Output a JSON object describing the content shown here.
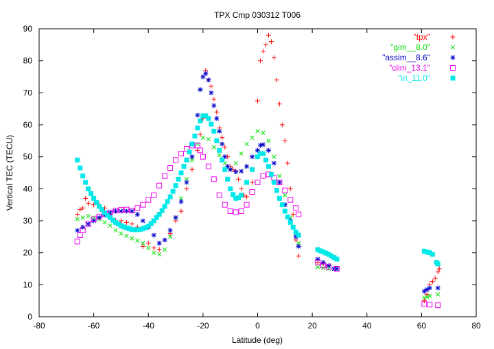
{
  "chart_data": {
    "type": "scatter",
    "title": "TPX Cmp 030312 T006",
    "xlabel": "Latitude (deg)",
    "ylabel": "Vertical TEC (TECU)",
    "xlim": [
      -80,
      80
    ],
    "ylim": [
      0,
      90
    ],
    "xticks": [
      -80,
      -60,
      -40,
      -20,
      0,
      20,
      40,
      60,
      80
    ],
    "yticks": [
      0,
      10,
      20,
      30,
      40,
      50,
      60,
      70,
      80,
      90
    ],
    "grid": false,
    "legend_position": "top-right",
    "series": [
      {
        "name": "\"tpx\"",
        "color": "#ff0000",
        "marker": "plus",
        "points": [
          [
            -66,
            32
          ],
          [
            -65,
            33.5
          ],
          [
            -64,
            34
          ],
          [
            -63,
            37
          ],
          [
            -62,
            35.5
          ],
          [
            -60,
            35
          ],
          [
            -58,
            35
          ],
          [
            -56,
            34
          ],
          [
            -54,
            32
          ],
          [
            -52,
            30
          ],
          [
            -50,
            30
          ],
          [
            -48,
            29.5
          ],
          [
            -46,
            29
          ],
          [
            -44,
            28
          ],
          [
            -42,
            22
          ],
          [
            -40,
            23
          ],
          [
            -38,
            21.5
          ],
          [
            -36,
            21
          ],
          [
            -34,
            24
          ],
          [
            -32,
            26
          ],
          [
            -30,
            30
          ],
          [
            -28,
            33
          ],
          [
            -26,
            40
          ],
          [
            -24,
            46
          ],
          [
            -22,
            52
          ],
          [
            -21,
            57
          ],
          [
            -20,
            62
          ],
          [
            -19,
            77
          ],
          [
            -18,
            74
          ],
          [
            -17,
            72
          ],
          [
            -16,
            68
          ],
          [
            -15,
            64
          ],
          [
            -14,
            59
          ],
          [
            -13,
            56
          ],
          [
            -12,
            53
          ],
          [
            -11,
            50
          ],
          [
            -10,
            47
          ],
          [
            -9,
            46
          ],
          [
            -8,
            45.5
          ],
          [
            -7,
            43
          ],
          [
            -6,
            40
          ],
          [
            -5,
            38
          ],
          [
            -4,
            37.5
          ],
          [
            -2,
            42
          ],
          [
            0,
            67.5
          ],
          [
            1,
            80
          ],
          [
            2,
            83
          ],
          [
            3,
            85
          ],
          [
            4,
            88
          ],
          [
            5,
            86
          ],
          [
            6,
            81
          ],
          [
            7,
            74
          ],
          [
            8,
            66.5
          ],
          [
            9,
            60
          ],
          [
            10,
            55
          ],
          [
            11,
            48
          ],
          [
            12,
            40
          ],
          [
            13,
            32
          ],
          [
            14,
            24
          ],
          [
            15,
            19
          ],
          [
            22,
            17
          ],
          [
            24,
            16.5
          ],
          [
            26,
            16
          ],
          [
            28,
            15
          ],
          [
            61,
            5
          ],
          [
            62,
            7
          ],
          [
            63,
            10
          ],
          [
            64,
            11
          ],
          [
            65,
            12
          ],
          [
            66,
            14
          ],
          [
            66.5,
            15
          ]
        ]
      },
      {
        "name": "\"gim__8.0\"",
        "color": "#00e000",
        "marker": "cross",
        "points": [
          [
            -66,
            30.5
          ],
          [
            -64,
            31
          ],
          [
            -62,
            31.5
          ],
          [
            -60,
            31
          ],
          [
            -58,
            30.5
          ],
          [
            -56,
            29.5
          ],
          [
            -54,
            28.5
          ],
          [
            -52,
            27
          ],
          [
            -50,
            26
          ],
          [
            -48,
            25.3
          ],
          [
            -46,
            24.5
          ],
          [
            -44,
            23.8
          ],
          [
            -42,
            23
          ],
          [
            -40,
            21.5
          ],
          [
            -38,
            20
          ],
          [
            -36,
            19.5
          ],
          [
            -34,
            21
          ],
          [
            -32,
            25
          ],
          [
            -30,
            31
          ],
          [
            -28,
            37
          ],
          [
            -26,
            43
          ],
          [
            -24,
            49
          ],
          [
            -22,
            54
          ],
          [
            -20,
            56
          ],
          [
            -18,
            55.5
          ],
          [
            -16,
            53
          ],
          [
            -14,
            50.5
          ],
          [
            -12,
            48
          ],
          [
            -10,
            46
          ],
          [
            -8,
            48
          ],
          [
            -6,
            51
          ],
          [
            -4,
            54
          ],
          [
            -2,
            56
          ],
          [
            0,
            58
          ],
          [
            2,
            57.5
          ],
          [
            4,
            55
          ],
          [
            6,
            50
          ],
          [
            8,
            44
          ],
          [
            10,
            38
          ],
          [
            12,
            31
          ],
          [
            14,
            26
          ],
          [
            15,
            23
          ],
          [
            22,
            15.5
          ],
          [
            24,
            15.2
          ],
          [
            26,
            15
          ],
          [
            28,
            15
          ],
          [
            29,
            15
          ],
          [
            61,
            6
          ],
          [
            62,
            6.2
          ],
          [
            63,
            6.5
          ],
          [
            66,
            7
          ]
        ]
      },
      {
        "name": "\"assim__8.6\"",
        "color": "#0000cc",
        "marker": "star",
        "points": [
          [
            -66,
            27
          ],
          [
            -64,
            28
          ],
          [
            -62,
            29
          ],
          [
            -60,
            30
          ],
          [
            -58,
            31
          ],
          [
            -56,
            32
          ],
          [
            -54,
            32.5
          ],
          [
            -52,
            33
          ],
          [
            -50,
            33
          ],
          [
            -48,
            33
          ],
          [
            -46,
            33
          ],
          [
            -44,
            32
          ],
          [
            -42,
            30
          ],
          [
            -40,
            28
          ],
          [
            -38,
            25.5
          ],
          [
            -36,
            23
          ],
          [
            -34,
            24
          ],
          [
            -32,
            27
          ],
          [
            -30,
            31
          ],
          [
            -28,
            36
          ],
          [
            -26,
            42
          ],
          [
            -24,
            50
          ],
          [
            -22,
            63
          ],
          [
            -21,
            71
          ],
          [
            -20,
            75
          ],
          [
            -19,
            76
          ],
          [
            -18,
            74
          ],
          [
            -17,
            70
          ],
          [
            -16,
            66
          ],
          [
            -15,
            62
          ],
          [
            -14,
            58
          ],
          [
            -13,
            54
          ],
          [
            -12,
            50
          ],
          [
            -11,
            47
          ],
          [
            -10,
            46
          ],
          [
            -8,
            45.3
          ],
          [
            -6,
            45.5
          ],
          [
            -4,
            47
          ],
          [
            -2,
            50
          ],
          [
            0,
            52
          ],
          [
            1,
            53.6
          ],
          [
            2,
            53.8
          ],
          [
            4,
            52
          ],
          [
            6,
            48
          ],
          [
            8,
            42
          ],
          [
            10,
            35
          ],
          [
            12,
            30
          ],
          [
            14,
            25
          ],
          [
            15,
            22
          ],
          [
            22,
            18
          ],
          [
            24,
            17
          ],
          [
            26,
            16
          ],
          [
            28,
            15
          ],
          [
            29,
            15
          ],
          [
            61,
            8
          ],
          [
            62,
            8.5
          ],
          [
            63,
            9
          ],
          [
            66,
            9
          ]
        ]
      },
      {
        "name": "\"clim_13.1\"",
        "color": "#ee00ee",
        "marker": "open-square",
        "points": [
          [
            -66,
            23.5
          ],
          [
            -65,
            25.5
          ],
          [
            -64,
            27
          ],
          [
            -62,
            29
          ],
          [
            -60,
            30.5
          ],
          [
            -58,
            31.3
          ],
          [
            -56,
            32
          ],
          [
            -54,
            32.6
          ],
          [
            -52,
            33.2
          ],
          [
            -50,
            33.4
          ],
          [
            -48,
            33.5
          ],
          [
            -46,
            33.2
          ],
          [
            -44,
            34
          ],
          [
            -42,
            35
          ],
          [
            -40,
            36.5
          ],
          [
            -38,
            38
          ],
          [
            -36,
            41
          ],
          [
            -34,
            44
          ],
          [
            -32,
            46.5
          ],
          [
            -30,
            49
          ],
          [
            -28,
            51
          ],
          [
            -26,
            52.5
          ],
          [
            -24,
            53.5
          ],
          [
            -22,
            53.5
          ],
          [
            -21,
            52
          ],
          [
            -20,
            50
          ],
          [
            -18,
            47
          ],
          [
            -16,
            43
          ],
          [
            -14,
            38
          ],
          [
            -12,
            35
          ],
          [
            -10,
            33
          ],
          [
            -8,
            32.7
          ],
          [
            -6,
            33
          ],
          [
            -4,
            35
          ],
          [
            -2,
            39
          ],
          [
            0,
            42
          ],
          [
            2,
            44
          ],
          [
            4,
            44.5
          ],
          [
            6,
            43.5
          ],
          [
            8,
            42
          ],
          [
            10,
            39.5
          ],
          [
            12,
            36.5
          ],
          [
            14,
            34
          ],
          [
            15,
            32
          ],
          [
            22,
            17
          ],
          [
            24,
            16
          ],
          [
            26,
            15.5
          ],
          [
            29,
            15
          ],
          [
            61,
            4
          ],
          [
            63,
            3.8
          ],
          [
            66,
            3.6
          ]
        ]
      },
      {
        "name": "\"iri_11.0\"",
        "color": "#00e8e8",
        "marker": "filled-square",
        "points": [
          [
            -66,
            49
          ],
          [
            -65,
            46.5
          ],
          [
            -64,
            44
          ],
          [
            -63,
            42
          ],
          [
            -62,
            40
          ],
          [
            -61,
            38.5
          ],
          [
            -60,
            37
          ],
          [
            -59,
            35.7
          ],
          [
            -58,
            34.5
          ],
          [
            -57,
            33.5
          ],
          [
            -56,
            32.5
          ],
          [
            -55,
            31.7
          ],
          [
            -54,
            31
          ],
          [
            -53,
            30.2
          ],
          [
            -52,
            29.5
          ],
          [
            -51,
            29
          ],
          [
            -50,
            28.5
          ],
          [
            -49,
            28.1
          ],
          [
            -48,
            27.8
          ],
          [
            -47,
            27.5
          ],
          [
            -46,
            27.3
          ],
          [
            -45,
            27.2
          ],
          [
            -44,
            27.2
          ],
          [
            -43,
            27.3
          ],
          [
            -42,
            27.5
          ],
          [
            -41,
            27.9
          ],
          [
            -40,
            28.3
          ],
          [
            -39,
            29.1
          ],
          [
            -38,
            30
          ],
          [
            -37,
            31
          ],
          [
            -36,
            32
          ],
          [
            -35,
            33.2
          ],
          [
            -34,
            34.5
          ],
          [
            -33,
            36
          ],
          [
            -32,
            37.5
          ],
          [
            -31,
            39.2
          ],
          [
            -30,
            41
          ],
          [
            -29,
            43
          ],
          [
            -28,
            45
          ],
          [
            -27,
            47
          ],
          [
            -26,
            49
          ],
          [
            -25,
            51.5
          ],
          [
            -24,
            54
          ],
          [
            -23,
            56.5
          ],
          [
            -22,
            59
          ],
          [
            -21,
            61.2
          ],
          [
            -20,
            62.8
          ],
          [
            -19,
            62.8
          ],
          [
            -18,
            62
          ],
          [
            -17,
            60.2
          ],
          [
            -16,
            58
          ],
          [
            -15,
            55
          ],
          [
            -14,
            52
          ],
          [
            -13,
            49
          ],
          [
            -12,
            46
          ],
          [
            -11,
            43
          ],
          [
            -10,
            40
          ],
          [
            -9,
            38.2
          ],
          [
            -8,
            37
          ],
          [
            -7,
            37.2
          ],
          [
            -6,
            38
          ],
          [
            -4,
            42
          ],
          [
            -2,
            46
          ],
          [
            0,
            50
          ],
          [
            1,
            51
          ],
          [
            2,
            51
          ],
          [
            3,
            49
          ],
          [
            4,
            47
          ],
          [
            5,
            44.5
          ],
          [
            6,
            42
          ],
          [
            7,
            39.5
          ],
          [
            8,
            37
          ],
          [
            9,
            35
          ],
          [
            10,
            33
          ],
          [
            11,
            31.2
          ],
          [
            12,
            29.5
          ],
          [
            13,
            28
          ],
          [
            14,
            26.5
          ],
          [
            15,
            25.5
          ],
          [
            22,
            21
          ],
          [
            23,
            20.6
          ],
          [
            24,
            20.3
          ],
          [
            25,
            19.9
          ],
          [
            26,
            19.5
          ],
          [
            27,
            19
          ],
          [
            28,
            18.5
          ],
          [
            29,
            18
          ],
          [
            61,
            20.5
          ],
          [
            62,
            20.2
          ],
          [
            63,
            20
          ],
          [
            64,
            19.5
          ],
          [
            65.5,
            17
          ],
          [
            66,
            16.5
          ]
        ]
      }
    ]
  }
}
